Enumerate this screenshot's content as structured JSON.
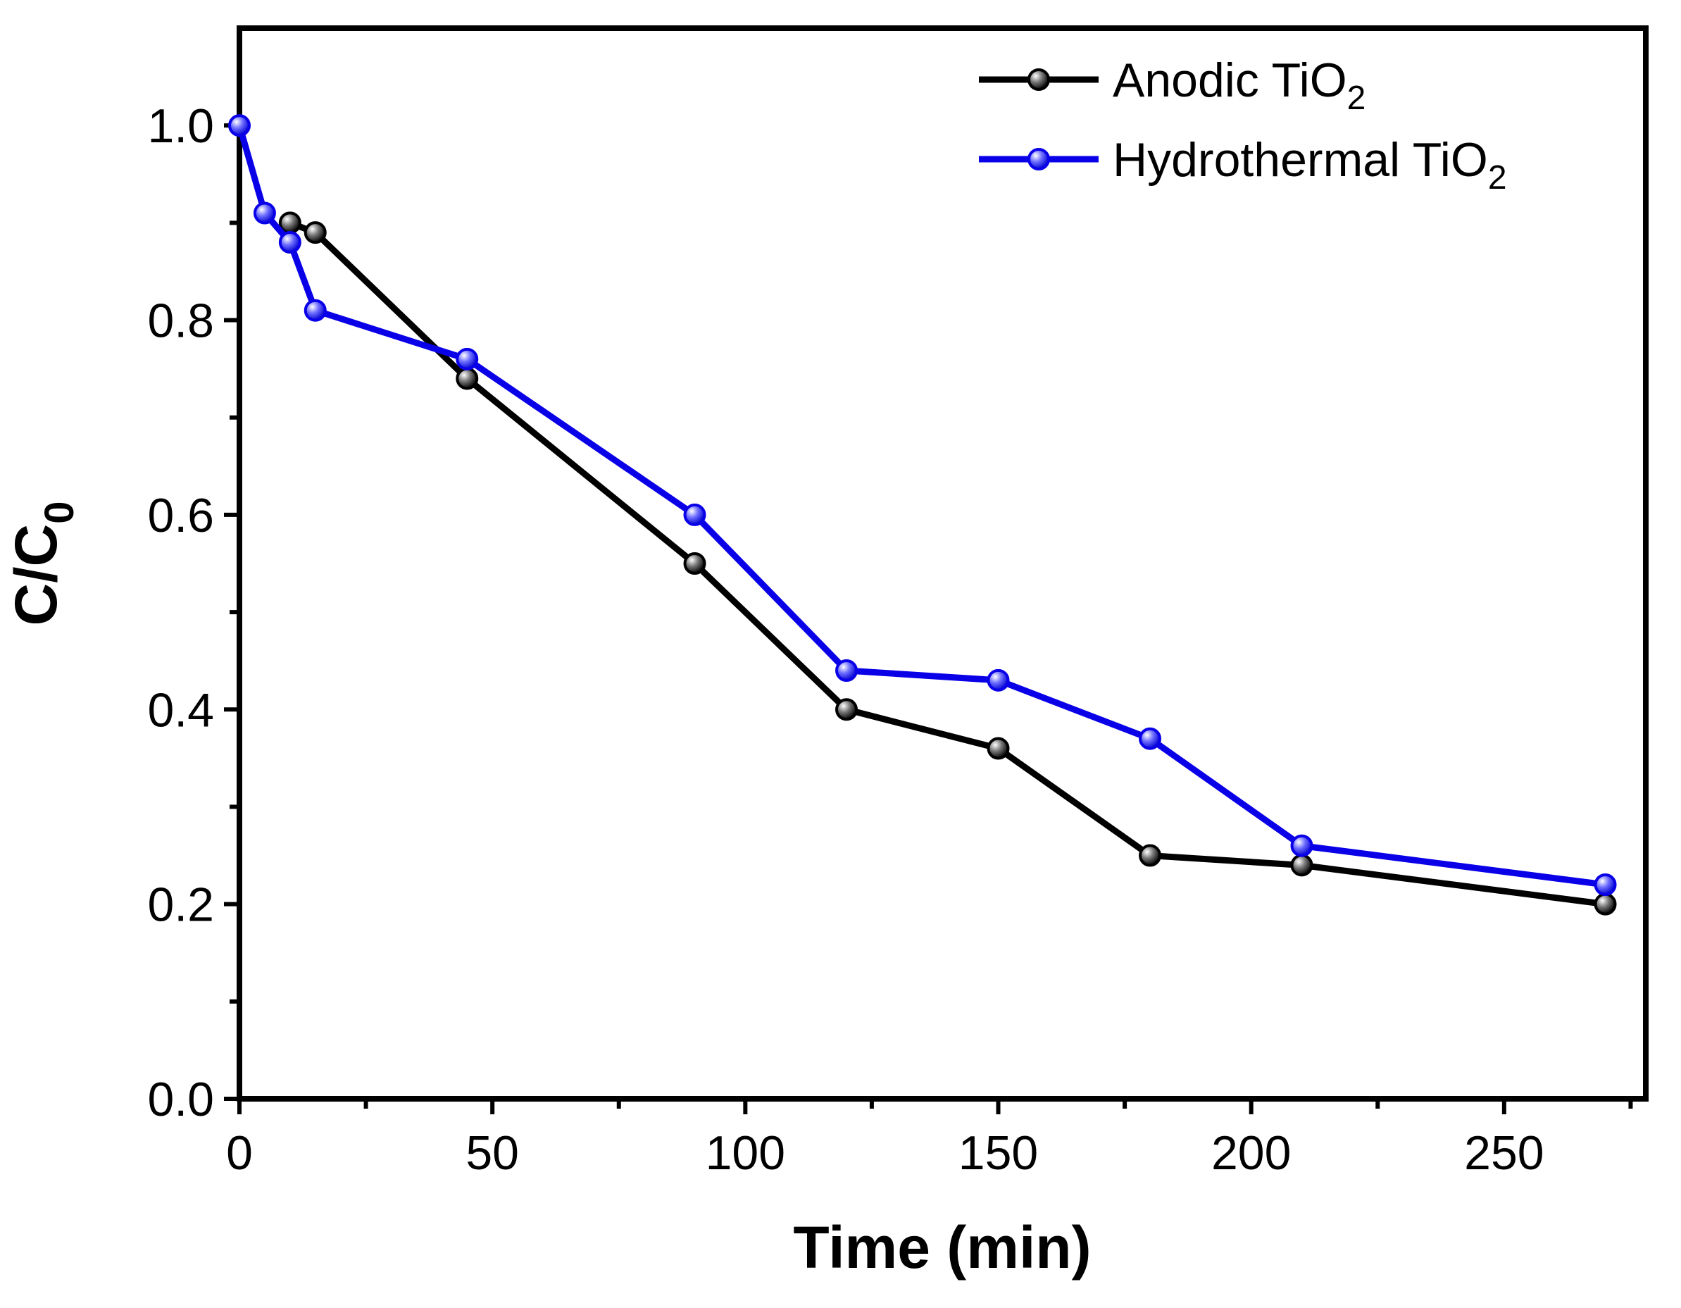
{
  "chart_data": {
    "type": "line",
    "title": "",
    "xlabel": "Time (min)",
    "ylabel_main": "C/C",
    "ylabel_sub": "0",
    "xlim": [
      0,
      278
    ],
    "ylim": [
      0,
      1.1
    ],
    "x_ticks": [
      0,
      50,
      100,
      150,
      200,
      250
    ],
    "x_tick_labels": [
      "0",
      "50",
      "100",
      "150",
      "200",
      "250"
    ],
    "x_minor_ticks": [
      25,
      75,
      125,
      175,
      225,
      275
    ],
    "y_ticks": [
      0.0,
      0.2,
      0.4,
      0.6,
      0.8,
      1.0
    ],
    "y_tick_labels": [
      "0.0",
      "0.2",
      "0.4",
      "0.6",
      "0.8",
      "1.0"
    ],
    "y_minor_ticks": [
      0.1,
      0.3,
      0.5,
      0.7,
      0.9
    ],
    "grid": false,
    "legend_position": "top-right",
    "series": [
      {
        "name": "Anodic TiO",
        "name_sub": "2",
        "color": "#000000",
        "marker_fill": "#6a6a6a",
        "x": [
          10,
          15,
          45,
          90,
          120,
          150,
          180,
          210,
          270
        ],
        "y": [
          0.9,
          0.89,
          0.74,
          0.55,
          0.4,
          0.36,
          0.25,
          0.24,
          0.2
        ]
      },
      {
        "name": "Hydrothermal TiO",
        "name_sub": "2",
        "color": "#0a00e8",
        "marker_fill": "#6666ff",
        "x": [
          0,
          5,
          10,
          15,
          45,
          90,
          120,
          150,
          180,
          210,
          270
        ],
        "y": [
          1.0,
          0.91,
          0.88,
          0.81,
          0.76,
          0.6,
          0.44,
          0.43,
          0.37,
          0.26,
          0.22
        ]
      }
    ]
  }
}
